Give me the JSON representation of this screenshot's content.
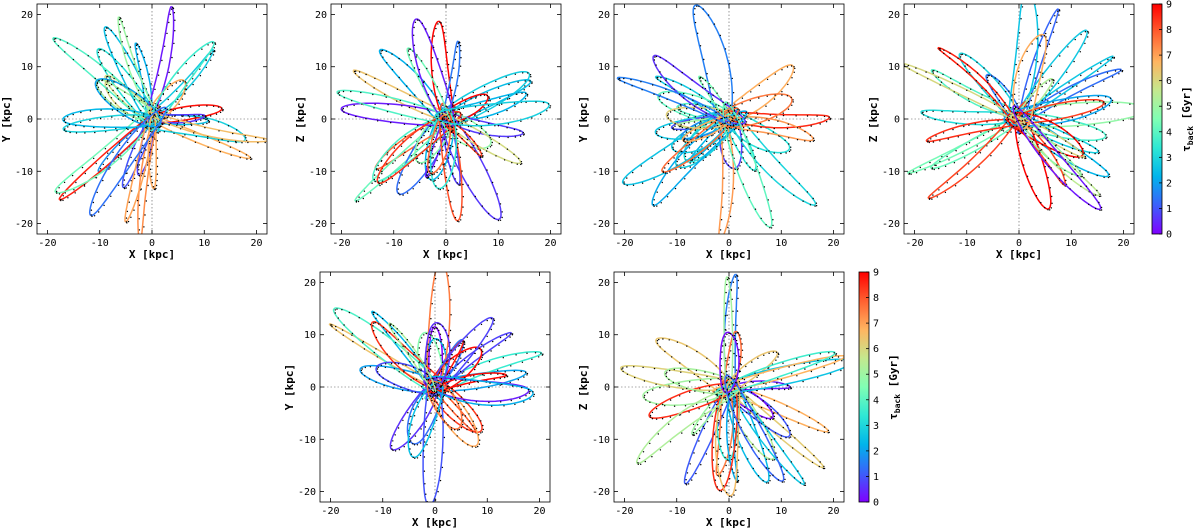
{
  "chart_data": [
    {
      "type": "line",
      "panel": "top-1",
      "xlabel": "X [kpc]",
      "ylabel": "Y [kpc]",
      "xlim": [
        -22,
        22
      ],
      "ylim": [
        -22,
        22
      ],
      "xticks": [
        -20,
        -10,
        0,
        10,
        20
      ],
      "yticks": [
        -20,
        -10,
        0,
        10,
        20
      ],
      "seed": 11,
      "series_summary": "~30 stellar orbits (rosette petals) colour-coded by t_back, with black dotted comparison tracks"
    },
    {
      "type": "line",
      "panel": "top-2",
      "xlabel": "X [kpc]",
      "ylabel": "Z [kpc]",
      "xlim": [
        -22,
        22
      ],
      "ylim": [
        -22,
        22
      ],
      "xticks": [
        -20,
        -10,
        0,
        10,
        20
      ],
      "yticks": [
        -20,
        -10,
        0,
        10,
        20
      ],
      "seed": 23,
      "series_summary": "~30 stellar orbits colour-coded by t_back"
    },
    {
      "type": "line",
      "panel": "top-3",
      "xlabel": "X [kpc]",
      "ylabel": "Y [kpc]",
      "xlim": [
        -22,
        22
      ],
      "ylim": [
        -22,
        22
      ],
      "xticks": [
        -20,
        -10,
        0,
        10,
        20
      ],
      "yticks": [
        -20,
        -10,
        0,
        10,
        20
      ],
      "seed": 37,
      "series_summary": "~30 stellar orbits colour-coded by t_back"
    },
    {
      "type": "line",
      "panel": "top-4",
      "xlabel": "X [kpc]",
      "ylabel": "Z [kpc]",
      "xlim": [
        -22,
        22
      ],
      "ylim": [
        -22,
        22
      ],
      "xticks": [
        -20,
        -10,
        0,
        10,
        20
      ],
      "yticks": [
        -20,
        -10,
        0,
        10,
        20
      ],
      "seed": 51,
      "series_summary": "~30 stellar orbits colour-coded by t_back"
    },
    {
      "type": "line",
      "panel": "bottom-1",
      "xlabel": "X [kpc]",
      "ylabel": "Y [kpc]",
      "xlim": [
        -22,
        22
      ],
      "ylim": [
        -22,
        22
      ],
      "xticks": [
        -20,
        -10,
        0,
        10,
        20
      ],
      "yticks": [
        -20,
        -10,
        0,
        10,
        20
      ],
      "seed": 67,
      "series_summary": "~30 stellar orbits colour-coded by t_back"
    },
    {
      "type": "line",
      "panel": "bottom-2",
      "xlabel": "X [kpc]",
      "ylabel": "Z [kpc]",
      "xlim": [
        -22,
        22
      ],
      "ylim": [
        -22,
        22
      ],
      "xticks": [
        -20,
        -10,
        0,
        10,
        20
      ],
      "yticks": [
        -20,
        -10,
        0,
        10,
        20
      ],
      "seed": 83,
      "series_summary": "~30 stellar orbits colour-coded by t_back"
    }
  ],
  "colorbars": [
    {
      "name": "top",
      "label_main": "τ",
      "label_sub": "back",
      "label_unit": " [Gyr]",
      "range": [
        0,
        9
      ],
      "ticks": [
        "0",
        "1",
        "2",
        "3",
        "4",
        "5",
        "6",
        "7",
        "8",
        "9"
      ]
    },
    {
      "name": "bottom",
      "label_main": "τ",
      "label_sub": "back",
      "label_unit": " [Gyr]",
      "range": [
        0,
        9
      ],
      "ticks": [
        "0",
        "1",
        "2",
        "3",
        "4",
        "5",
        "6",
        "7",
        "8",
        "9"
      ]
    }
  ],
  "colors": {
    "colormap": [
      "#8000ff",
      "#3b60fb",
      "#00b4eb",
      "#2ee8d4",
      "#80ffb4",
      "#c4e88e",
      "#ffb460",
      "#ff6030",
      "#ff0000"
    ],
    "tracer": "#000000"
  }
}
